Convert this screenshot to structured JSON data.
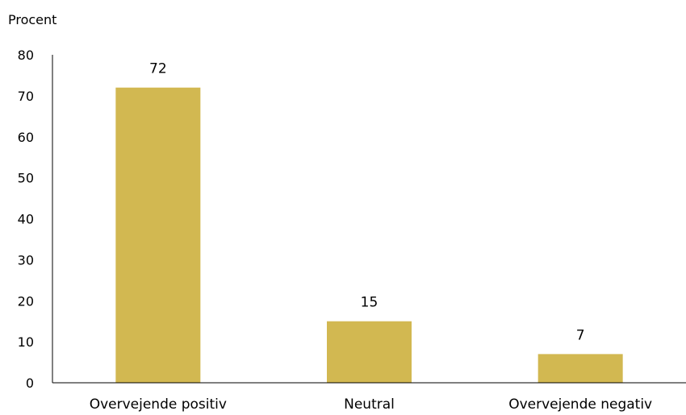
{
  "chart_data": {
    "type": "bar",
    "unit_label": "Procent",
    "categories": [
      "Overvejende positiv",
      "Neutral",
      "Overvejende negativ"
    ],
    "values": [
      72,
      15,
      7
    ],
    "data_labels": [
      "72",
      "15",
      "7"
    ],
    "yticks": [
      0,
      10,
      20,
      30,
      40,
      50,
      60,
      70,
      80
    ],
    "ylim": [
      0,
      80
    ],
    "grid": false,
    "legend": "none",
    "bar_color": "#D2B851",
    "axis_color": "#000000"
  }
}
